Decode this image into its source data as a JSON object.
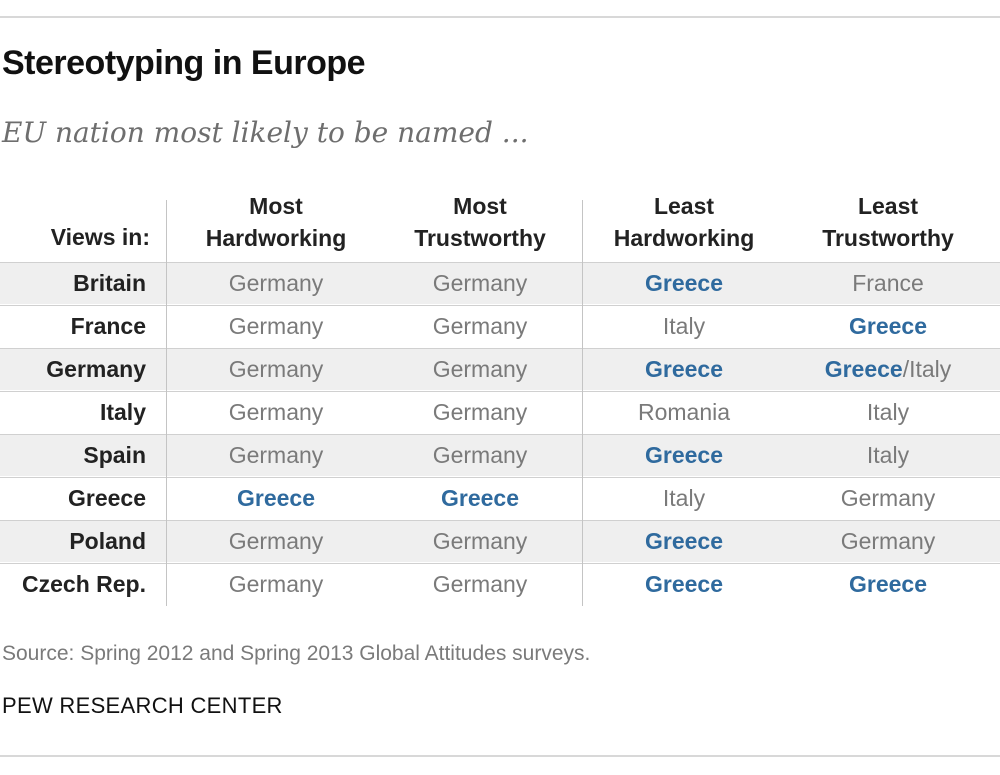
{
  "title": "Stereotyping in Europe",
  "subtitle": "EU nation most likely to be named ...",
  "source": "Source: Spring 2012 and Spring 2013 Global Attitudes surveys.",
  "org": "PEW RESEARCH CENTER",
  "colors": {
    "highlight": "#2f6a9e",
    "text_muted": "#7a7a7a",
    "row_shade": "#efefef"
  },
  "chart_data": {
    "type": "table",
    "row_header_label": "Views in:",
    "columns": [
      {
        "line1": "Most",
        "line2": "Hardworking"
      },
      {
        "line1": "Most",
        "line2": "Trustworthy"
      },
      {
        "line1": "Least",
        "line2": "Hardworking"
      },
      {
        "line1": "Least",
        "line2": "Trustworthy"
      }
    ],
    "rows": [
      {
        "country": "Britain",
        "cells": [
          [
            "Germany"
          ],
          [
            "Germany"
          ],
          [
            "*Greece"
          ],
          [
            "France"
          ]
        ]
      },
      {
        "country": "France",
        "cells": [
          [
            "Germany"
          ],
          [
            "Germany"
          ],
          [
            "Italy"
          ],
          [
            "*Greece"
          ]
        ]
      },
      {
        "country": "Germany",
        "cells": [
          [
            "Germany"
          ],
          [
            "Germany"
          ],
          [
            "*Greece"
          ],
          [
            "*Greece",
            "/Italy"
          ]
        ]
      },
      {
        "country": "Italy",
        "cells": [
          [
            "Germany"
          ],
          [
            "Germany"
          ],
          [
            "Romania"
          ],
          [
            "Italy"
          ]
        ]
      },
      {
        "country": "Spain",
        "cells": [
          [
            "Germany"
          ],
          [
            "Germany"
          ],
          [
            "*Greece"
          ],
          [
            "Italy"
          ]
        ]
      },
      {
        "country": "Greece",
        "cells": [
          [
            "*Greece"
          ],
          [
            "*Greece"
          ],
          [
            "Italy"
          ],
          [
            "Germany"
          ]
        ]
      },
      {
        "country": "Poland",
        "cells": [
          [
            "Germany"
          ],
          [
            "Germany"
          ],
          [
            "*Greece"
          ],
          [
            "Germany"
          ]
        ]
      },
      {
        "country": "Czech Rep.",
        "cells": [
          [
            "Germany"
          ],
          [
            "Germany"
          ],
          [
            "*Greece"
          ],
          [
            "*Greece"
          ]
        ]
      }
    ]
  }
}
